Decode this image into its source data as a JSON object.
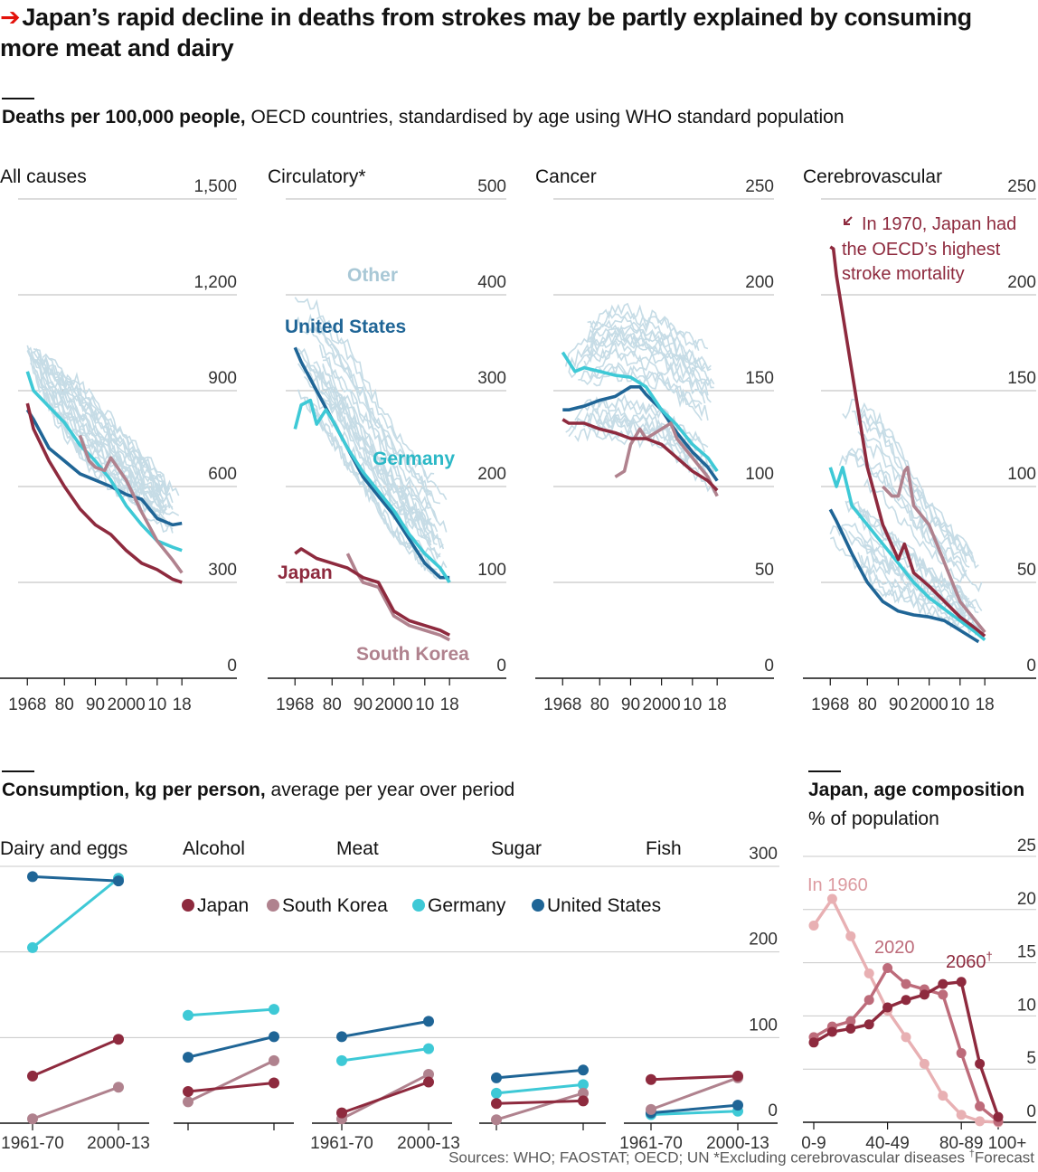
{
  "title": "Japan’s rapid decline in deaths from strokes may be partly explained by consuming more meat and dairy",
  "section1": {
    "bold": "Deaths per 100,000 people,",
    "rest": " OECD countries, standardised by age using WHO standard population"
  },
  "section2": {
    "bold": "Consumption, kg per person,",
    "rest": " average per year over period"
  },
  "section3": {
    "bold": "Japan, age composition",
    "sub": "% of population"
  },
  "sources": {
    "text": "Sources: WHO; FAOSTAT; OECD; UN   *Excluding cerebrovascular diseases   ",
    "dagger": "†",
    "forecast": "Forecast"
  },
  "colors": {
    "japan": "#8e2a3e",
    "south_korea": "#b0828e",
    "germany": "#3ec9d6",
    "united_states": "#1f6596",
    "other": "#c6dce6",
    "age1960": "#e8b0b3",
    "age2020": "#bd6b7a",
    "age2060": "#8e2a3e",
    "accent": "#e3120b"
  },
  "chart_data": [
    {
      "type": "line",
      "title": "All causes",
      "ylim": [
        0,
        1500
      ],
      "yticks": [
        "0",
        "300",
        "600",
        "900",
        "1,200",
        "1,500"
      ],
      "xlim": [
        1965,
        2020
      ],
      "xticks": [
        "1968",
        "80",
        "90",
        "2000",
        "10",
        "18"
      ],
      "series": [
        {
          "name": "United States",
          "x": [
            1968,
            1970,
            1975,
            1980,
            1985,
            1990,
            1995,
            2000,
            2005,
            2010,
            2015,
            2018
          ],
          "y": [
            840,
            810,
            720,
            680,
            640,
            620,
            600,
            575,
            560,
            500,
            480,
            485
          ]
        },
        {
          "name": "Germany",
          "x": [
            1968,
            1970,
            1975,
            1980,
            1985,
            1990,
            1995,
            2000,
            2005,
            2010,
            2015,
            2018
          ],
          "y": [
            960,
            900,
            850,
            800,
            730,
            680,
            620,
            540,
            480,
            430,
            410,
            400
          ]
        },
        {
          "name": "South Korea",
          "x": [
            1985,
            1988,
            1990,
            1993,
            1995,
            2000,
            2005,
            2010,
            2015,
            2018
          ],
          "y": [
            760,
            680,
            660,
            650,
            690,
            620,
            520,
            430,
            370,
            330
          ]
        },
        {
          "name": "Japan",
          "x": [
            1968,
            1970,
            1975,
            1980,
            1985,
            1990,
            1995,
            2000,
            2005,
            2010,
            2015,
            2018
          ],
          "y": [
            860,
            780,
            680,
            600,
            530,
            480,
            450,
            400,
            360,
            340,
            310,
            300
          ]
        }
      ]
    },
    {
      "type": "line",
      "title": "Circulatory*",
      "ylim": [
        0,
        500
      ],
      "yticks": [
        "0",
        "100",
        "200",
        "300",
        "400",
        "500"
      ],
      "xlim": [
        1965,
        2020
      ],
      "xticks": [
        "1968",
        "80",
        "90",
        "2000",
        "10",
        "18"
      ],
      "annotations": [
        "Other",
        "United States",
        "Germany",
        "Japan",
        "South Korea"
      ],
      "series": [
        {
          "name": "United States",
          "x": [
            1968,
            1970,
            1975,
            1980,
            1985,
            1990,
            1995,
            2000,
            2005,
            2010,
            2015,
            2018
          ],
          "y": [
            345,
            330,
            300,
            270,
            240,
            210,
            190,
            170,
            145,
            120,
            105,
            105
          ]
        },
        {
          "name": "Germany",
          "x": [
            1968,
            1970,
            1973,
            1975,
            1978,
            1980,
            1985,
            1990,
            1995,
            2000,
            2005,
            2010,
            2015,
            2018
          ],
          "y": [
            260,
            285,
            290,
            265,
            280,
            270,
            240,
            215,
            195,
            175,
            150,
            130,
            115,
            100
          ]
        },
        {
          "name": "South Korea",
          "x": [
            1985,
            1988,
            1990,
            1995,
            2000,
            2005,
            2010,
            2015,
            2018
          ],
          "y": [
            130,
            110,
            100,
            95,
            65,
            55,
            50,
            45,
            40
          ]
        },
        {
          "name": "Japan",
          "x": [
            1968,
            1970,
            1975,
            1980,
            1985,
            1990,
            1995,
            2000,
            2005,
            2010,
            2015,
            2018
          ],
          "y": [
            130,
            135,
            125,
            120,
            115,
            105,
            100,
            70,
            60,
            55,
            50,
            45
          ]
        }
      ]
    },
    {
      "type": "line",
      "title": "Cancer",
      "ylim": [
        0,
        250
      ],
      "yticks": [
        "0",
        "50",
        "100",
        "150",
        "200",
        "250"
      ],
      "xlim": [
        1965,
        2020
      ],
      "xticks": [
        "1968",
        "80",
        "90",
        "2000",
        "10",
        "18"
      ],
      "series": [
        {
          "name": "United States",
          "x": [
            1968,
            1970,
            1975,
            1980,
            1985,
            1990,
            1993,
            1995,
            2000,
            2005,
            2010,
            2015,
            2018
          ],
          "y": [
            140,
            140,
            142,
            145,
            147,
            152,
            152,
            148,
            140,
            128,
            118,
            110,
            103
          ]
        },
        {
          "name": "Germany",
          "x": [
            1968,
            1970,
            1972,
            1975,
            1980,
            1985,
            1990,
            1995,
            2000,
            2005,
            2010,
            2015,
            2018
          ],
          "y": [
            170,
            165,
            160,
            162,
            160,
            158,
            157,
            152,
            140,
            132,
            122,
            115,
            108
          ]
        },
        {
          "name": "South Korea",
          "x": [
            1985,
            1988,
            1990,
            1993,
            1995,
            2000,
            2003,
            2005,
            2010,
            2015,
            2018
          ],
          "y": [
            105,
            108,
            122,
            130,
            125,
            130,
            133,
            125,
            115,
            105,
            95
          ]
        },
        {
          "name": "Japan",
          "x": [
            1968,
            1970,
            1975,
            1980,
            1985,
            1990,
            1995,
            2000,
            2005,
            2010,
            2015,
            2018
          ],
          "y": [
            135,
            133,
            133,
            130,
            128,
            125,
            125,
            122,
            115,
            108,
            103,
            98
          ]
        }
      ]
    },
    {
      "type": "line",
      "title": "Cerebrovascular",
      "ylim": [
        0,
        250
      ],
      "yticks": [
        "0",
        "50",
        "100",
        "150",
        "200",
        "250"
      ],
      "xlim": [
        1965,
        2020
      ],
      "xticks": [
        "1968",
        "80",
        "90",
        "2000",
        "10",
        "18"
      ],
      "annotations": [
        "In 1970, Japan had",
        "the OECD’s highest",
        "stroke mortality"
      ],
      "series": [
        {
          "name": "United States",
          "x": [
            1968,
            1970,
            1975,
            1980,
            1985,
            1990,
            1995,
            2000,
            2005,
            2010,
            2015,
            2016
          ],
          "y": [
            88,
            82,
            65,
            50,
            40,
            35,
            33,
            32,
            30,
            25,
            20,
            19
          ]
        },
        {
          "name": "Germany",
          "x": [
            1968,
            1970,
            1972,
            1975,
            1980,
            1985,
            1990,
            1995,
            2000,
            2005,
            2010,
            2015,
            2018
          ],
          "y": [
            110,
            100,
            110,
            90,
            80,
            70,
            60,
            50,
            42,
            36,
            30,
            24,
            20
          ]
        },
        {
          "name": "South Korea",
          "x": [
            1985,
            1988,
            1990,
            1992,
            1993,
            1995,
            2000,
            2005,
            2010,
            2015,
            2018
          ],
          "y": [
            100,
            95,
            95,
            108,
            110,
            90,
            80,
            60,
            40,
            30,
            24
          ]
        },
        {
          "name": "Japan",
          "x": [
            1968,
            1969,
            1970,
            1975,
            1980,
            1985,
            1990,
            1992,
            1995,
            2000,
            2005,
            2010,
            2015,
            2018
          ],
          "y": [
            225,
            224,
            210,
            160,
            110,
            80,
            62,
            70,
            55,
            48,
            40,
            32,
            26,
            22
          ]
        }
      ]
    },
    {
      "type": "line",
      "title": "Consumption, kg per person",
      "ylim": [
        0,
        300
      ],
      "yticks": [
        "0",
        "100",
        "200",
        "300"
      ],
      "periods": [
        "1961-70",
        "2000-13"
      ],
      "legend": [
        "Japan",
        "South Korea",
        "Germany",
        "United States"
      ],
      "panels": [
        {
          "name": "Dairy and eggs",
          "series": [
            {
              "name": "Japan",
              "values": [
                55,
                98
              ]
            },
            {
              "name": "South Korea",
              "values": [
                5,
                42
              ]
            },
            {
              "name": "Germany",
              "values": [
                205,
                286
              ]
            },
            {
              "name": "United States",
              "values": [
                288,
                283
              ]
            }
          ]
        },
        {
          "name": "Alcohol",
          "series": [
            {
              "name": "Japan",
              "values": [
                37,
                47
              ]
            },
            {
              "name": "South Korea",
              "values": [
                25,
                73
              ]
            },
            {
              "name": "Germany",
              "values": [
                126,
                133
              ]
            },
            {
              "name": "United States",
              "values": [
                77,
                101
              ]
            }
          ]
        },
        {
          "name": "Meat",
          "series": [
            {
              "name": "Japan",
              "values": [
                12,
                48
              ]
            },
            {
              "name": "South Korea",
              "values": [
                5,
                57
              ]
            },
            {
              "name": "Germany",
              "values": [
                73,
                87
              ]
            },
            {
              "name": "United States",
              "values": [
                101,
                119
              ]
            }
          ]
        },
        {
          "name": "Sugar",
          "series": [
            {
              "name": "Japan",
              "values": [
                23,
                26
              ]
            },
            {
              "name": "South Korea",
              "values": [
                4,
                35
              ]
            },
            {
              "name": "Germany",
              "values": [
                35,
                45
              ]
            },
            {
              "name": "United States",
              "values": [
                53,
                62
              ]
            }
          ]
        },
        {
          "name": "Fish",
          "series": [
            {
              "name": "Japan",
              "values": [
                51,
                55
              ]
            },
            {
              "name": "South Korea",
              "values": [
                16,
                53
              ]
            },
            {
              "name": "Germany",
              "values": [
                10,
                14
              ]
            },
            {
              "name": "United States",
              "values": [
                12,
                21
              ]
            }
          ]
        }
      ]
    },
    {
      "type": "line",
      "title": "Japan, age composition",
      "ylabel": "% of population",
      "ylim": [
        0,
        25
      ],
      "yticks": [
        "0",
        "5",
        "10",
        "15",
        "20",
        "25"
      ],
      "categories": [
        "0-9",
        "10-19",
        "20-29",
        "30-39",
        "40-49",
        "50-59",
        "60-69",
        "70-79",
        "80-89",
        "90-99",
        "100+"
      ],
      "xticks": [
        "0-9",
        "40-49",
        "80-89",
        "100+"
      ],
      "series": [
        {
          "name": "In 1960",
          "values": [
            18.5,
            21.0,
            17.5,
            14.0,
            10.5,
            8.0,
            5.5,
            2.5,
            0.7,
            0.1,
            0.0
          ]
        },
        {
          "name": "2020",
          "values": [
            8.0,
            9.0,
            9.5,
            11.5,
            14.5,
            13.0,
            12.5,
            12.0,
            6.5,
            1.5,
            0.1
          ]
        },
        {
          "name": "2060",
          "values": [
            7.5,
            8.5,
            8.8,
            9.2,
            10.8,
            11.5,
            12.0,
            13.0,
            13.2,
            5.5,
            0.5
          ]
        }
      ]
    }
  ]
}
